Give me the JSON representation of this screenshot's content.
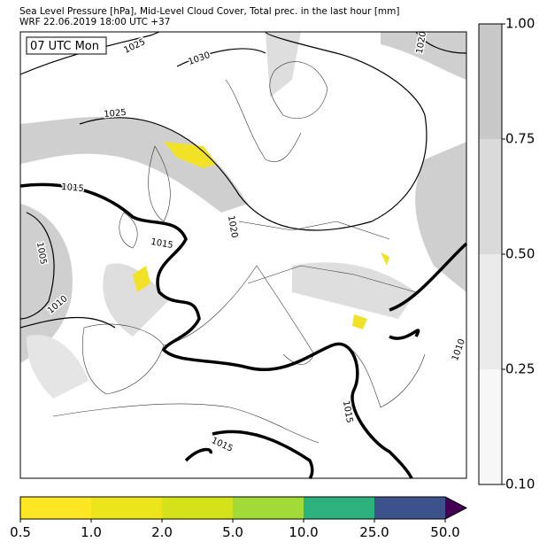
{
  "header": {
    "line1": "Sea Level Pressure [hPa], Mid-Level Cloud Cover, Total prec. in the last hour [mm]",
    "line2": "WRF 22.06.2019 18:00 UTC +37"
  },
  "map": {
    "time_label": "07 UTC Mon",
    "isobar_labels": [
      "1025",
      "1030",
      "1025",
      "1015",
      "1015",
      "1020",
      "1005",
      "1010",
      "1015",
      "1015",
      "1020",
      "1010"
    ]
  },
  "cloud_colorbar": {
    "ticks": [
      "1.00",
      "0.75",
      "0.50",
      "0.25",
      "0.10"
    ],
    "colors": [
      "#c8c8c8",
      "#dadada",
      "#ebebeb",
      "#f7f7f7"
    ]
  },
  "precip_colorbar": {
    "ticks": [
      "0.5",
      "1.0",
      "2.0",
      "5.0",
      "10.0",
      "25.0",
      "50.0"
    ],
    "colors": [
      "#fde725",
      "#ece51b",
      "#d5e21a",
      "#a2da37",
      "#2db27d",
      "#3b528b"
    ],
    "extend_color": "#440154"
  }
}
